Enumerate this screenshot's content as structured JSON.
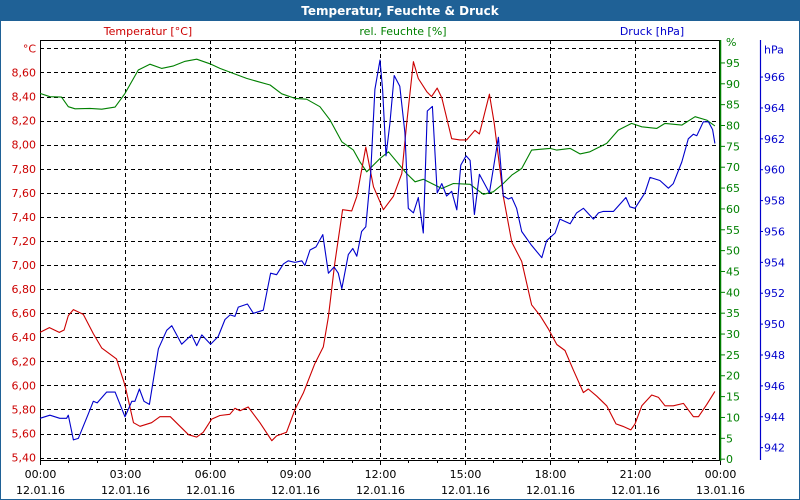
{
  "window": {
    "title": "Temperatur, Feuchte & Druck"
  },
  "colors": {
    "temp": "#cc0000",
    "humidity": "#008000",
    "pressure": "#0000cc",
    "titlebar": "#1f6196"
  },
  "chart_data": {
    "type": "line",
    "title": "Temperatur, Feuchte & Druck",
    "grid": true,
    "x_unit": "hours since 12.01.16 00:00",
    "xlim": [
      0,
      24
    ],
    "x_ticks": [
      {
        "h": 0,
        "time": "00:00",
        "date": "12.01.16"
      },
      {
        "h": 3,
        "time": "03:00",
        "date": "12.01.16"
      },
      {
        "h": 6,
        "time": "06:00",
        "date": "12.01.16"
      },
      {
        "h": 9,
        "time": "09:00",
        "date": "12.01.16"
      },
      {
        "h": 12,
        "time": "12:00",
        "date": "12.01.16"
      },
      {
        "h": 15,
        "time": "15:00",
        "date": "12.01.16"
      },
      {
        "h": 18,
        "time": "18:00",
        "date": "12.01.16"
      },
      {
        "h": 21,
        "time": "21:00",
        "date": "12.01.16"
      },
      {
        "h": 24,
        "time": "00:00",
        "date": "13.01.16"
      }
    ],
    "axes": {
      "temp": {
        "legend": "Temperatur [°C]",
        "unit": "°C",
        "ylim": [
          5.38,
          8.87
        ],
        "ticks": [
          "5,40",
          "5,60",
          "5,80",
          "6,00",
          "6,20",
          "6,40",
          "6,60",
          "6,80",
          "7,00",
          "7,20",
          "7,40",
          "7,60",
          "7,80",
          "8,00",
          "8,20",
          "8,40",
          "8,60"
        ]
      },
      "humidity": {
        "legend": "rel. Feuchte [%]",
        "unit": "%",
        "ylim": [
          -0.2,
          100.5
        ],
        "ticks": [
          "0",
          "5",
          "10",
          "15",
          "20",
          "25",
          "30",
          "35",
          "40",
          "45",
          "50",
          "55",
          "60",
          "65",
          "70",
          "75",
          "80",
          "85",
          "90",
          "95"
        ]
      },
      "pressure": {
        "legend": "Druck [hPa]",
        "unit": "hPa",
        "ylim": [
          941.2,
          968.4
        ],
        "ticks": [
          "942",
          "944",
          "946",
          "948",
          "950",
          "952",
          "954",
          "956",
          "958",
          "960",
          "962",
          "964",
          "966"
        ]
      }
    },
    "series": [
      {
        "name": "Temperatur",
        "axis": "temp",
        "points": [
          [
            0,
            6.44
          ],
          [
            0.33,
            6.48
          ],
          [
            0.68,
            6.44
          ],
          [
            0.85,
            6.46
          ],
          [
            1.0,
            6.58
          ],
          [
            1.18,
            6.63
          ],
          [
            1.53,
            6.59
          ],
          [
            1.88,
            6.43
          ],
          [
            2.18,
            6.31
          ],
          [
            2.7,
            6.22
          ],
          [
            3.0,
            6.0
          ],
          [
            3.3,
            5.69
          ],
          [
            3.53,
            5.66
          ],
          [
            3.94,
            5.69
          ],
          [
            4.23,
            5.74
          ],
          [
            4.6,
            5.74
          ],
          [
            4.94,
            5.66
          ],
          [
            5.24,
            5.59
          ],
          [
            5.53,
            5.57
          ],
          [
            5.76,
            5.61
          ],
          [
            6.06,
            5.72
          ],
          [
            6.35,
            5.75
          ],
          [
            6.7,
            5.76
          ],
          [
            6.88,
            5.81
          ],
          [
            7.06,
            5.79
          ],
          [
            7.35,
            5.82
          ],
          [
            7.76,
            5.69
          ],
          [
            8.18,
            5.54
          ],
          [
            8.35,
            5.58
          ],
          [
            8.7,
            5.61
          ],
          [
            9.0,
            5.8
          ],
          [
            9.3,
            5.94
          ],
          [
            9.7,
            6.18
          ],
          [
            10.0,
            6.32
          ],
          [
            10.18,
            6.57
          ],
          [
            10.4,
            7.01
          ],
          [
            10.68,
            7.46
          ],
          [
            11.0,
            7.45
          ],
          [
            11.18,
            7.57
          ],
          [
            11.5,
            7.98
          ],
          [
            11.77,
            7.65
          ],
          [
            12.12,
            7.46
          ],
          [
            12.47,
            7.57
          ],
          [
            12.77,
            7.76
          ],
          [
            12.94,
            8.17
          ],
          [
            13.18,
            8.69
          ],
          [
            13.35,
            8.55
          ],
          [
            13.65,
            8.44
          ],
          [
            13.82,
            8.4
          ],
          [
            14.02,
            8.47
          ],
          [
            14.18,
            8.39
          ],
          [
            14.53,
            8.05
          ],
          [
            14.82,
            8.04
          ],
          [
            15.06,
            8.04
          ],
          [
            15.35,
            8.12
          ],
          [
            15.51,
            8.09
          ],
          [
            15.86,
            8.42
          ],
          [
            16.03,
            8.18
          ],
          [
            16.35,
            7.57
          ],
          [
            16.65,
            7.19
          ],
          [
            17.0,
            7.03
          ],
          [
            17.35,
            6.67
          ],
          [
            17.65,
            6.58
          ],
          [
            17.94,
            6.47
          ],
          [
            18.24,
            6.34
          ],
          [
            18.53,
            6.29
          ],
          [
            18.82,
            6.13
          ],
          [
            19.18,
            5.94
          ],
          [
            19.35,
            5.97
          ],
          [
            19.65,
            5.91
          ],
          [
            20.0,
            5.83
          ],
          [
            20.33,
            5.68
          ],
          [
            20.57,
            5.66
          ],
          [
            20.85,
            5.63
          ],
          [
            21.0,
            5.68
          ],
          [
            21.24,
            5.83
          ],
          [
            21.59,
            5.92
          ],
          [
            21.83,
            5.9
          ],
          [
            22.06,
            5.83
          ],
          [
            22.35,
            5.83
          ],
          [
            22.71,
            5.85
          ],
          [
            23.06,
            5.74
          ],
          [
            23.24,
            5.74
          ],
          [
            23.53,
            5.84
          ],
          [
            23.82,
            5.95
          ]
        ]
      },
      {
        "name": "rel. Feuchte",
        "axis": "humidity",
        "points": [
          [
            0,
            87.7
          ],
          [
            0.35,
            86.9
          ],
          [
            0.76,
            86.8
          ],
          [
            1.0,
            84.5
          ],
          [
            1.24,
            84.0
          ],
          [
            1.76,
            84.1
          ],
          [
            2.18,
            83.9
          ],
          [
            2.65,
            84.4
          ],
          [
            3.0,
            87.7
          ],
          [
            3.47,
            93.3
          ],
          [
            3.88,
            94.7
          ],
          [
            4.29,
            93.7
          ],
          [
            4.71,
            94.3
          ],
          [
            5.12,
            95.4
          ],
          [
            5.53,
            95.9
          ],
          [
            6.0,
            94.8
          ],
          [
            6.35,
            93.7
          ],
          [
            6.82,
            92.5
          ],
          [
            7.29,
            91.3
          ],
          [
            7.7,
            90.5
          ],
          [
            8.12,
            89.7
          ],
          [
            8.53,
            87.6
          ],
          [
            9.0,
            86.5
          ],
          [
            9.41,
            86.3
          ],
          [
            9.88,
            84.5
          ],
          [
            10.24,
            81.3
          ],
          [
            10.65,
            76.1
          ],
          [
            11.06,
            74.1
          ],
          [
            11.29,
            71.3
          ],
          [
            11.53,
            68.9
          ],
          [
            12.0,
            72.1
          ],
          [
            12.3,
            73.7
          ],
          [
            12.94,
            68.5
          ],
          [
            13.24,
            66.5
          ],
          [
            13.53,
            67.1
          ],
          [
            14.18,
            64.9
          ],
          [
            14.59,
            66.1
          ],
          [
            15.18,
            65.9
          ],
          [
            15.65,
            63.5
          ],
          [
            16.0,
            64.1
          ],
          [
            16.35,
            66.1
          ],
          [
            16.65,
            68.1
          ],
          [
            17.0,
            69.7
          ],
          [
            17.35,
            74.1
          ],
          [
            18.0,
            74.5
          ],
          [
            18.24,
            74.1
          ],
          [
            18.71,
            74.5
          ],
          [
            19.06,
            73.2
          ],
          [
            19.41,
            73.7
          ],
          [
            20.0,
            75.7
          ],
          [
            20.41,
            78.9
          ],
          [
            20.88,
            80.5
          ],
          [
            21.24,
            79.7
          ],
          [
            21.77,
            79.3
          ],
          [
            22.06,
            80.5
          ],
          [
            22.65,
            80.1
          ],
          [
            23.12,
            82.1
          ],
          [
            23.53,
            81.3
          ],
          [
            23.82,
            79.9
          ]
        ]
      },
      {
        "name": "Druck",
        "axis": "pressure",
        "points": [
          [
            0,
            943.9
          ],
          [
            0.35,
            944.1
          ],
          [
            0.7,
            943.9
          ],
          [
            0.94,
            943.9
          ],
          [
            1.0,
            944.1
          ],
          [
            1.18,
            942.5
          ],
          [
            1.35,
            942.6
          ],
          [
            1.71,
            944.2
          ],
          [
            1.88,
            945.0
          ],
          [
            2.02,
            944.9
          ],
          [
            2.35,
            945.6
          ],
          [
            2.65,
            945.6
          ],
          [
            3.0,
            944.0
          ],
          [
            3.24,
            945.0
          ],
          [
            3.35,
            945.0
          ],
          [
            3.51,
            945.8
          ],
          [
            3.67,
            945.0
          ],
          [
            3.86,
            944.8
          ],
          [
            4.18,
            948.4
          ],
          [
            4.47,
            949.6
          ],
          [
            4.65,
            949.9
          ],
          [
            5.0,
            948.7
          ],
          [
            5.35,
            949.3
          ],
          [
            5.53,
            948.6
          ],
          [
            5.71,
            949.3
          ],
          [
            6.02,
            948.7
          ],
          [
            6.29,
            949.2
          ],
          [
            6.53,
            950.3
          ],
          [
            6.71,
            950.6
          ],
          [
            6.88,
            950.5
          ],
          [
            7.0,
            951.1
          ],
          [
            7.32,
            951.3
          ],
          [
            7.53,
            950.7
          ],
          [
            7.88,
            950.9
          ],
          [
            8.14,
            953.3
          ],
          [
            8.35,
            953.2
          ],
          [
            8.59,
            953.9
          ],
          [
            8.76,
            954.1
          ],
          [
            9.0,
            954.0
          ],
          [
            9.24,
            954.1
          ],
          [
            9.35,
            953.8
          ],
          [
            9.53,
            954.8
          ],
          [
            9.74,
            955.0
          ],
          [
            9.98,
            955.8
          ],
          [
            10.18,
            953.3
          ],
          [
            10.38,
            953.7
          ],
          [
            10.53,
            953.3
          ],
          [
            10.65,
            952.3
          ],
          [
            10.88,
            954.5
          ],
          [
            11.04,
            954.9
          ],
          [
            11.18,
            954.4
          ],
          [
            11.35,
            956.0
          ],
          [
            11.5,
            956.3
          ],
          [
            11.67,
            959.8
          ],
          [
            11.82,
            965.2
          ],
          [
            12.0,
            967.1
          ],
          [
            12.09,
            965.2
          ],
          [
            12.21,
            960.9
          ],
          [
            12.35,
            963.0
          ],
          [
            12.5,
            966.1
          ],
          [
            12.7,
            965.4
          ],
          [
            12.88,
            962.4
          ],
          [
            13.0,
            957.5
          ],
          [
            13.18,
            957.2
          ],
          [
            13.35,
            958.2
          ],
          [
            13.53,
            955.9
          ],
          [
            13.67,
            963.8
          ],
          [
            13.85,
            964.1
          ],
          [
            14.02,
            958.5
          ],
          [
            14.18,
            959.1
          ],
          [
            14.35,
            958.3
          ],
          [
            14.53,
            958.6
          ],
          [
            14.71,
            957.4
          ],
          [
            14.85,
            960.3
          ],
          [
            15.04,
            960.9
          ],
          [
            15.18,
            960.6
          ],
          [
            15.33,
            957.1
          ],
          [
            15.51,
            959.7
          ],
          [
            15.86,
            958.5
          ],
          [
            16.18,
            962.1
          ],
          [
            16.35,
            958.3
          ],
          [
            16.53,
            958.1
          ],
          [
            16.65,
            958.2
          ],
          [
            16.82,
            957.5
          ],
          [
            17.0,
            956.0
          ],
          [
            17.35,
            955.1
          ],
          [
            17.71,
            954.3
          ],
          [
            17.88,
            955.4
          ],
          [
            18.18,
            955.9
          ],
          [
            18.35,
            956.8
          ],
          [
            18.71,
            956.5
          ],
          [
            18.94,
            957.2
          ],
          [
            19.18,
            957.5
          ],
          [
            19.53,
            956.8
          ],
          [
            19.71,
            957.2
          ],
          [
            19.88,
            957.3
          ],
          [
            20.24,
            957.3
          ],
          [
            20.68,
            958.2
          ],
          [
            20.82,
            957.6
          ],
          [
            21.0,
            957.5
          ],
          [
            21.35,
            958.5
          ],
          [
            21.53,
            959.5
          ],
          [
            21.88,
            959.3
          ],
          [
            22.18,
            958.8
          ],
          [
            22.35,
            959.1
          ],
          [
            22.65,
            960.5
          ],
          [
            22.88,
            962.0
          ],
          [
            23.06,
            962.3
          ],
          [
            23.18,
            962.2
          ],
          [
            23.41,
            963.1
          ],
          [
            23.59,
            963.1
          ],
          [
            23.74,
            962.6
          ],
          [
            23.82,
            961.7
          ]
        ]
      }
    ]
  }
}
